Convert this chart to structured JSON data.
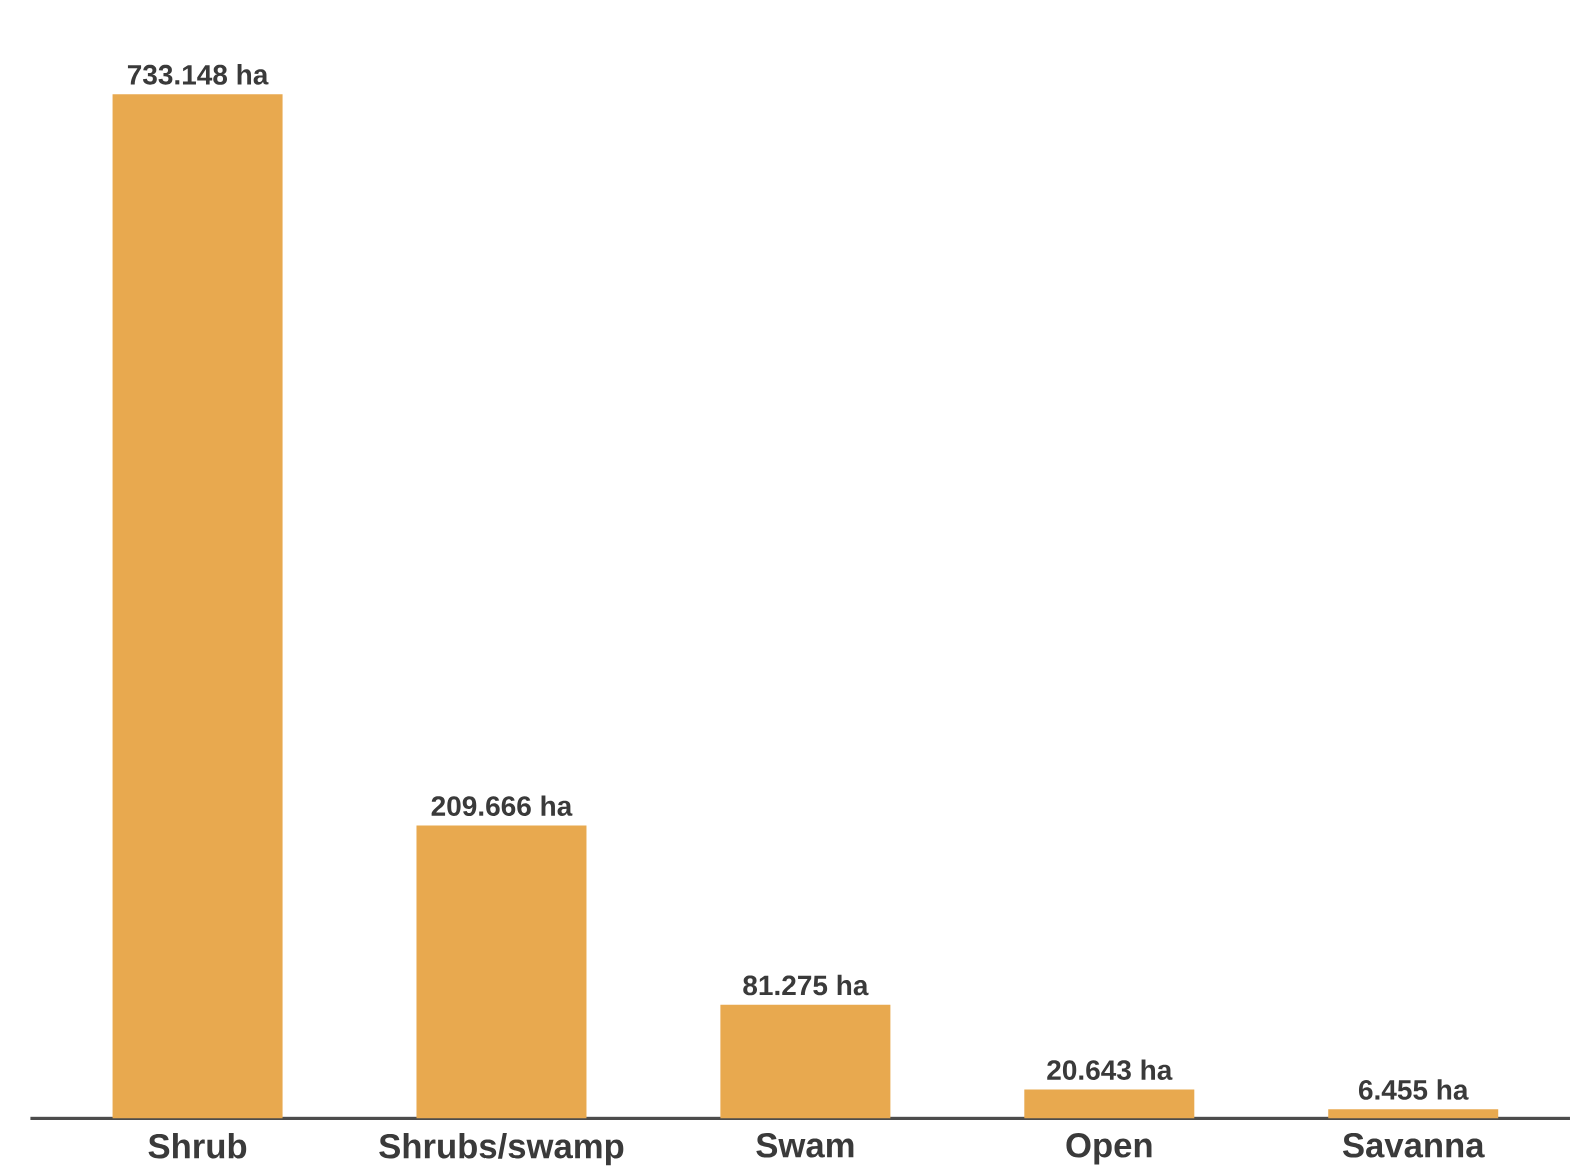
{
  "chart_data": {
    "type": "bar",
    "categories": [
      "Shrub",
      "Shrubs/swamp",
      "Swam",
      "Open",
      "Savanna"
    ],
    "values": [
      733.148,
      209.666,
      81.275,
      20.643,
      6.455
    ],
    "value_labels": [
      "733.148 ha",
      "209.666 ha",
      "81.275 ha",
      "20.643 ha",
      "6.455 ha"
    ],
    "color": "#e8a94f"
  }
}
